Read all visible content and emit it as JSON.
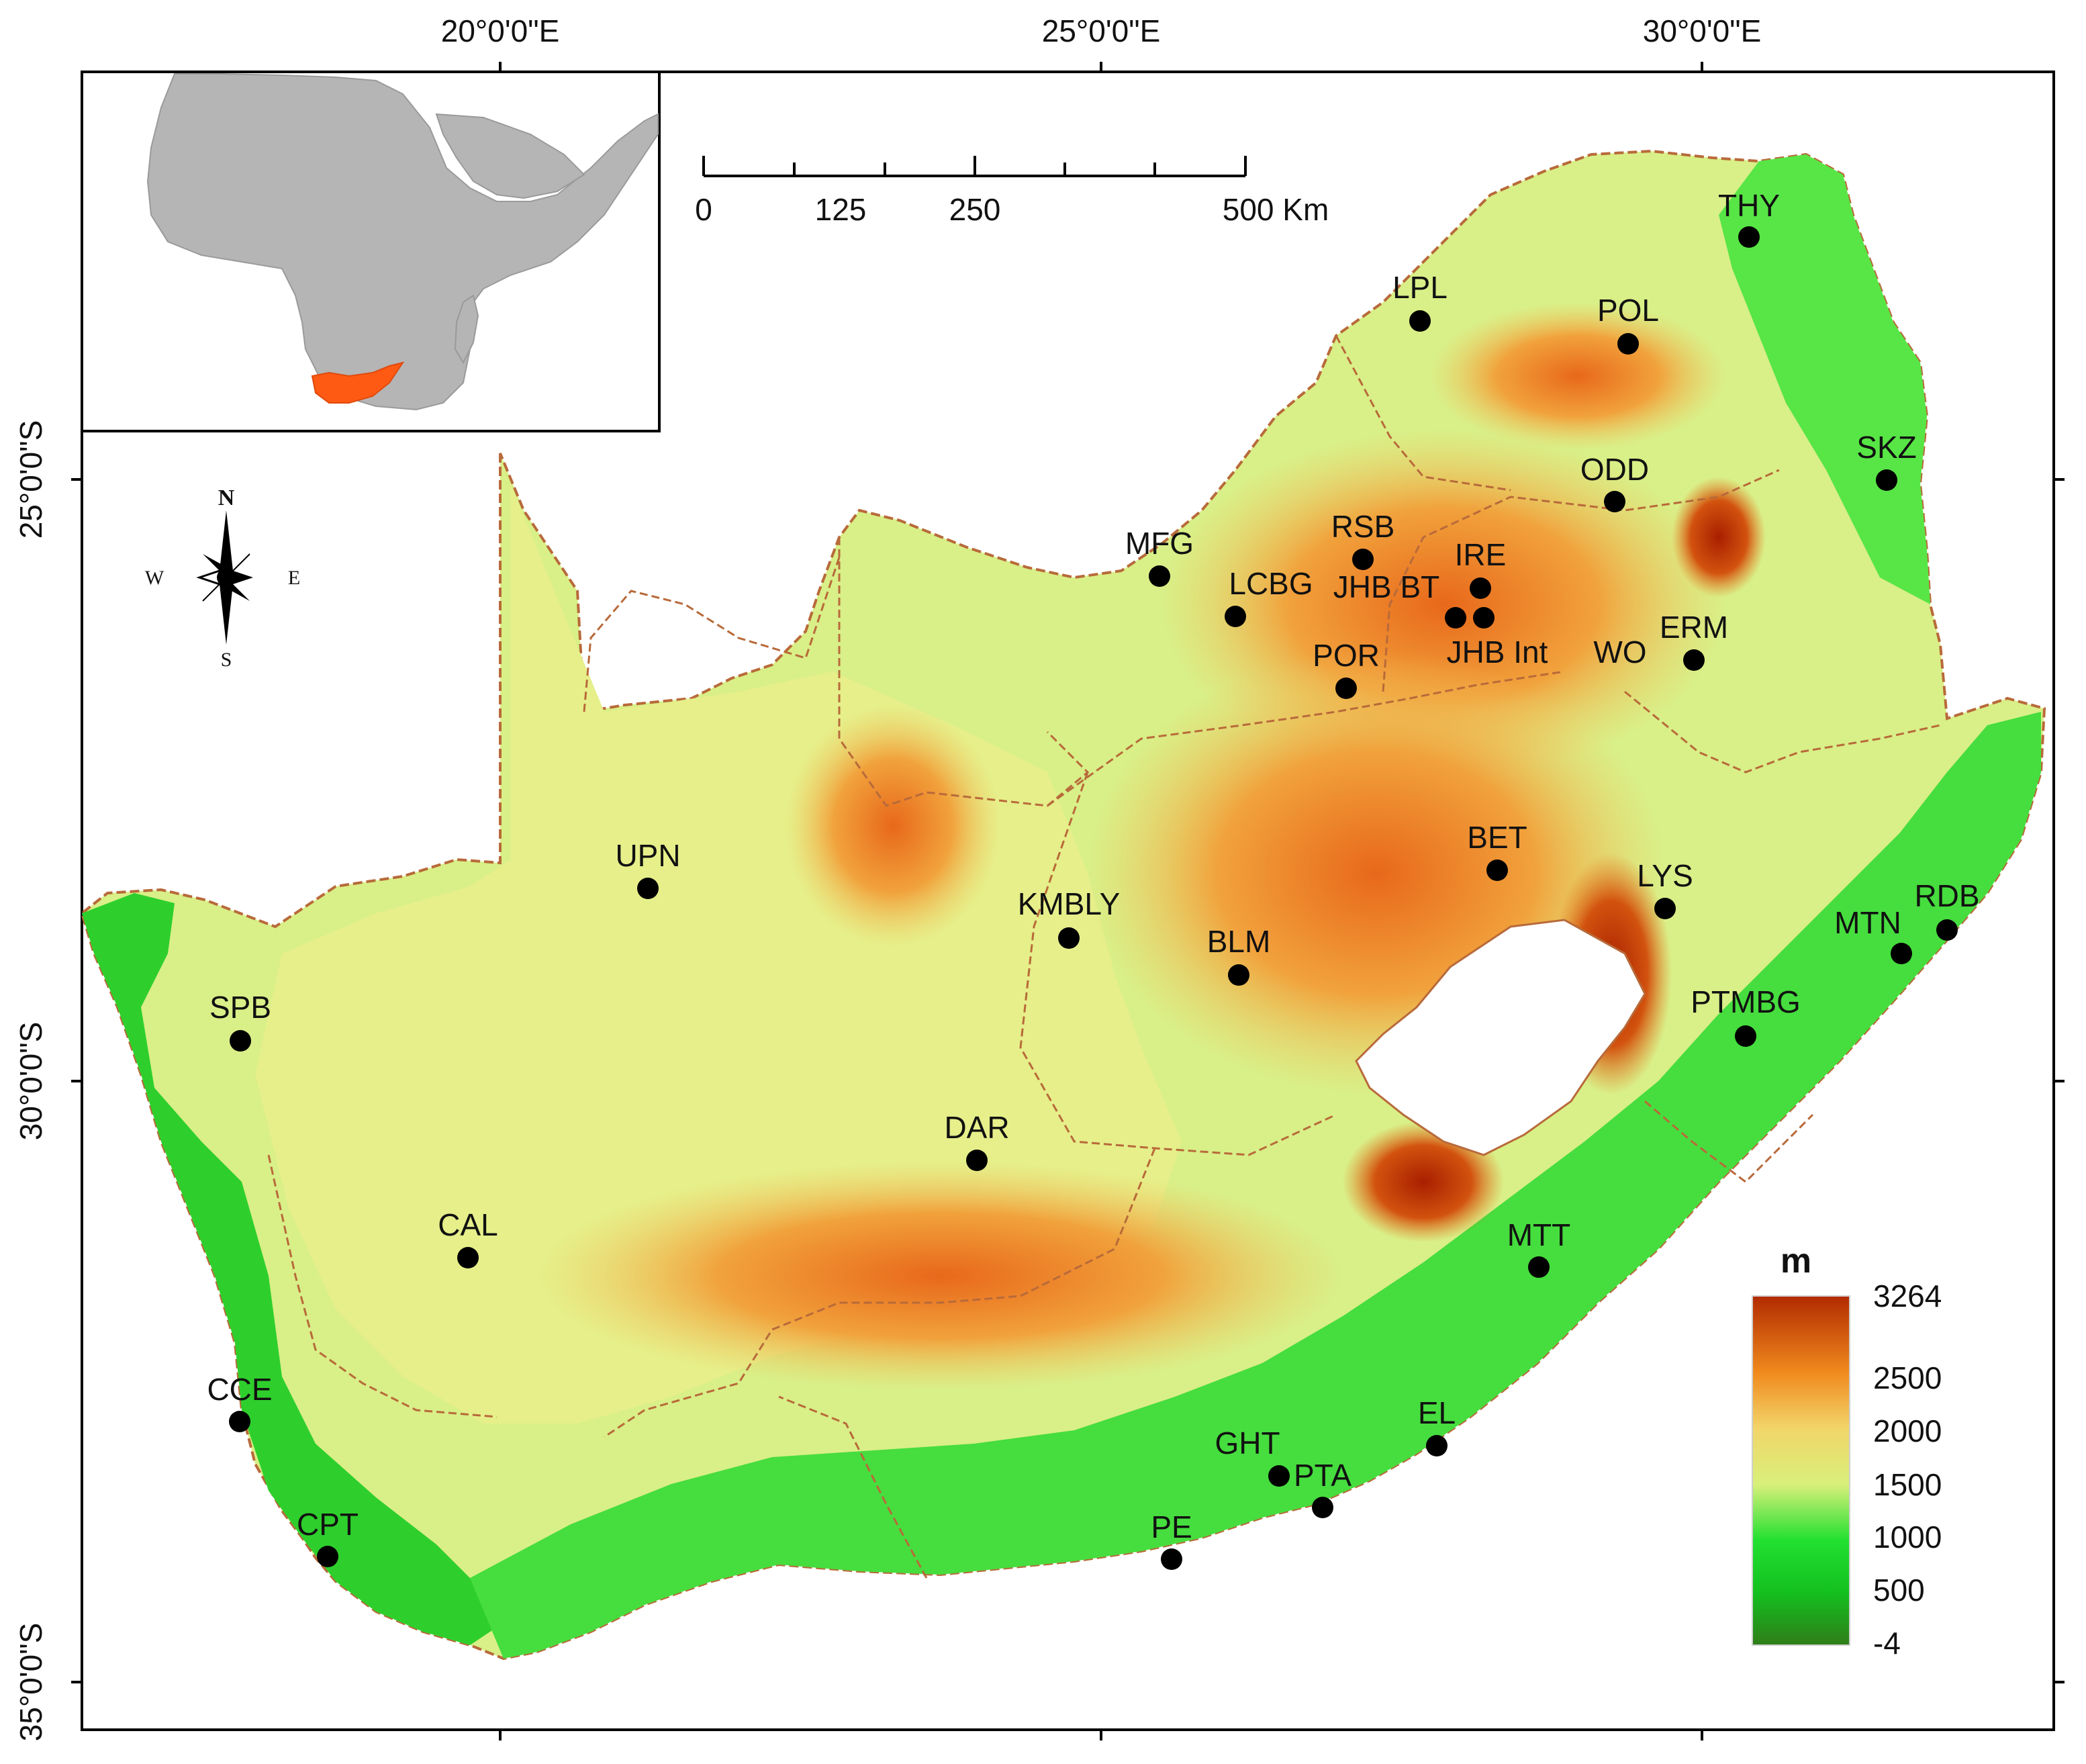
{
  "graticule": {
    "top_labels": [
      "20°0'0\"E",
      "25°0'0\"E",
      "30°0'0\"E"
    ],
    "left_labels": [
      "25°0'0\"S",
      "30°0'0\"S",
      "35°0'0\"S"
    ]
  },
  "scale_bar": {
    "ticks": [
      "0",
      "125",
      "250",
      "500 Km"
    ]
  },
  "north_arrow": {
    "n": "N",
    "s": "S",
    "e": "E",
    "w": "W"
  },
  "legend": {
    "title": "m",
    "labels": [
      "3264",
      "2500",
      "2000",
      "1500",
      "1000",
      "500",
      "-4"
    ],
    "colors": [
      "#b22a00",
      "#f08a1e",
      "#f2d56a",
      "#d8f07a",
      "#22e030",
      "#13c01f",
      "#2f7d18"
    ]
  },
  "colors": {
    "inset_land": "#b5b5b5",
    "highlight_country": "#ff5a14",
    "border_line": "#b86a3a",
    "marker": "#000000"
  },
  "sites": [
    {
      "code": "THY"
    },
    {
      "code": "LPL"
    },
    {
      "code": "POL"
    },
    {
      "code": "SKZ"
    },
    {
      "code": "ODD"
    },
    {
      "code": "RSB"
    },
    {
      "code": "MFG"
    },
    {
      "code": "IRE"
    },
    {
      "code": "LCBG"
    },
    {
      "code": "JHB BT"
    },
    {
      "code": "JHB Int"
    },
    {
      "code": "WO"
    },
    {
      "code": "ERM"
    },
    {
      "code": "POR"
    },
    {
      "code": "UPN"
    },
    {
      "code": "BET"
    },
    {
      "code": "LYS"
    },
    {
      "code": "RDB"
    },
    {
      "code": "KMBLY"
    },
    {
      "code": "MTN"
    },
    {
      "code": "BLM"
    },
    {
      "code": "PTMBG"
    },
    {
      "code": "SPB"
    },
    {
      "code": "DAR"
    },
    {
      "code": "CAL"
    },
    {
      "code": "MTT"
    },
    {
      "code": "CCE"
    },
    {
      "code": "EL"
    },
    {
      "code": "GHT"
    },
    {
      "code": "PTA"
    },
    {
      "code": "CPT"
    },
    {
      "code": "PE"
    }
  ]
}
